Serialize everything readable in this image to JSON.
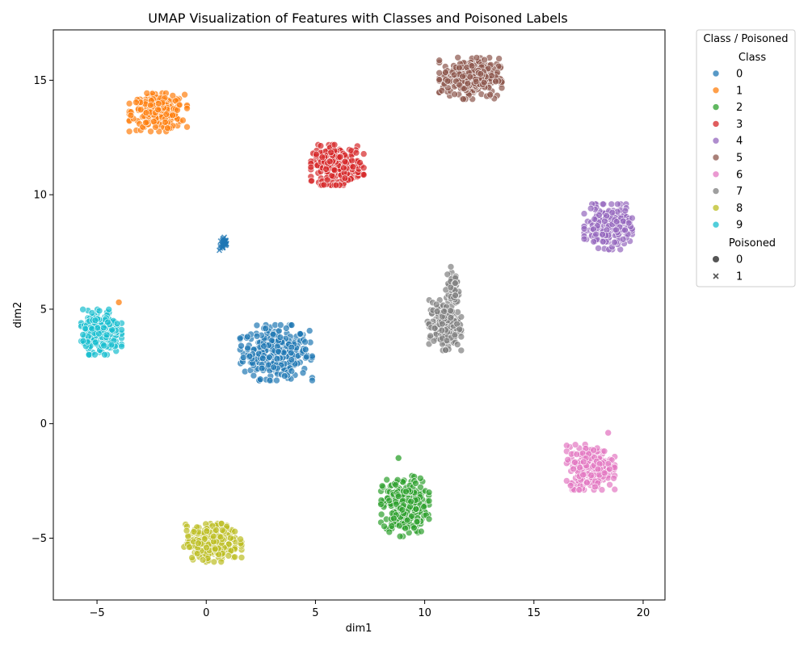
{
  "chart_data": {
    "type": "scatter",
    "title": "UMAP Visualization of Features with Classes and Poisoned Labels",
    "xlabel": "dim1",
    "ylabel": "dim2",
    "xlim": [
      -7,
      21
    ],
    "ylim": [
      -7.7,
      17.2
    ],
    "x_ticks": [
      -5,
      0,
      5,
      10,
      15,
      20
    ],
    "y_ticks": [
      -5,
      0,
      5,
      10,
      15
    ],
    "x_tick_labels": [
      "−5",
      "0",
      "5",
      "10",
      "15",
      "20"
    ],
    "y_tick_labels": [
      "−5",
      "0",
      "5",
      "10",
      "15"
    ],
    "grid": false,
    "legend": {
      "placement": "outside-right",
      "title": "Class / Poisoned",
      "class_heading": "Class",
      "poisoned_heading": "Poisoned",
      "poisoned_entries": [
        {
          "label": "0",
          "marker": "circle"
        },
        {
          "label": "1",
          "marker": "x"
        }
      ]
    },
    "series": [
      {
        "name": "0",
        "color": "#1f77b4",
        "clusters": [
          {
            "cx": 3.2,
            "cy": 3.1,
            "sx": 0.75,
            "sy": 0.55,
            "n": 320
          },
          {
            "cx": 0.8,
            "cy": 7.85,
            "sx": 0.1,
            "sy": 0.15,
            "n": 30,
            "poisoned": true
          }
        ]
      },
      {
        "name": "1",
        "color": "#ff7f0e",
        "clusters": [
          {
            "cx": -2.2,
            "cy": 13.6,
            "sx": 0.6,
            "sy": 0.38,
            "n": 260
          }
        ]
      },
      {
        "name": "2",
        "color": "#2ca02c",
        "clusters": [
          {
            "cx": 9.1,
            "cy": -3.6,
            "sx": 0.5,
            "sy": 0.6,
            "n": 300
          }
        ]
      },
      {
        "name": "3",
        "color": "#d62728",
        "clusters": [
          {
            "cx": 6.0,
            "cy": 11.3,
            "sx": 0.55,
            "sy": 0.4,
            "n": 260
          }
        ]
      },
      {
        "name": "4",
        "color": "#9467bd",
        "clusters": [
          {
            "cx": 18.4,
            "cy": 8.6,
            "sx": 0.5,
            "sy": 0.45,
            "n": 260
          }
        ]
      },
      {
        "name": "5",
        "color": "#8c564b",
        "clusters": [
          {
            "cx": 12.1,
            "cy": 15.1,
            "sx": 0.65,
            "sy": 0.42,
            "n": 300
          }
        ]
      },
      {
        "name": "6",
        "color": "#e377c2",
        "clusters": [
          {
            "cx": 17.6,
            "cy": -1.9,
            "sx": 0.5,
            "sy": 0.45,
            "n": 280
          }
        ]
      },
      {
        "name": "7",
        "color": "#7f7f7f",
        "clusters": [
          {
            "cx": 10.9,
            "cy": 4.3,
            "sx": 0.35,
            "sy": 0.5,
            "n": 200
          },
          {
            "cx": 11.3,
            "cy": 5.9,
            "sx": 0.15,
            "sy": 0.45,
            "n": 60
          }
        ]
      },
      {
        "name": "8",
        "color": "#bcbd22",
        "clusters": [
          {
            "cx": 0.3,
            "cy": -5.2,
            "sx": 0.6,
            "sy": 0.38,
            "n": 280
          }
        ]
      },
      {
        "name": "9",
        "color": "#17becf",
        "clusters": [
          {
            "cx": -4.8,
            "cy": 4.0,
            "sx": 0.42,
            "sy": 0.45,
            "n": 260
          }
        ]
      }
    ],
    "outliers": [
      {
        "x": -4.0,
        "y": 5.3,
        "color": "#ff7f0e"
      },
      {
        "x": 1.6,
        "y": 3.4,
        "color": "#1f77b4"
      },
      {
        "x": 8.8,
        "y": -1.5,
        "color": "#2ca02c"
      },
      {
        "x": 18.4,
        "y": -0.4,
        "color": "#e377c2"
      }
    ]
  }
}
